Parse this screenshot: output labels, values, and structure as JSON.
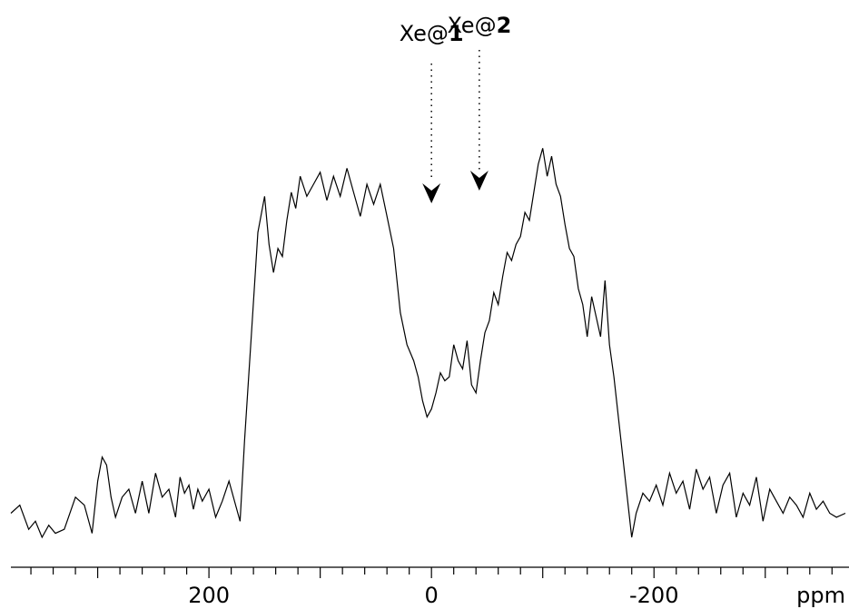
{
  "chart_data": {
    "type": "line",
    "title": "",
    "xlabel": "ppm",
    "ylabel": "",
    "x_reversed": true,
    "xlim": [
      378,
      -372
    ],
    "ylim": [
      0,
      1
    ],
    "x_ticks": [
      {
        "value": 200,
        "label": "200"
      },
      {
        "value": 0,
        "label": "0"
      },
      {
        "value": -200,
        "label": "-200"
      }
    ],
    "series": [
      {
        "name": "",
        "color": "#000000",
        "x": [
          378,
          370,
          362,
          356,
          350,
          344,
          338,
          330,
          320,
          312,
          305,
          300,
          296,
          292,
          288,
          284,
          278,
          272,
          266,
          260,
          254,
          248,
          242,
          236,
          230,
          226,
          222,
          218,
          214,
          210,
          206,
          200,
          194,
          188,
          182,
          176,
          172,
          168,
          162,
          156,
          150,
          146,
          142,
          138,
          134,
          130,
          126,
          122,
          118,
          112,
          106,
          100,
          94,
          88,
          82,
          76,
          70,
          64,
          58,
          52,
          46,
          40,
          34,
          28,
          22,
          16,
          12,
          8,
          4,
          0,
          -4,
          -8,
          -12,
          -16,
          -20,
          -24,
          -28,
          -32,
          -36,
          -40,
          -44,
          -48,
          -52,
          -56,
          -60,
          -64,
          -68,
          -72,
          -76,
          -80,
          -84,
          -88,
          -92,
          -96,
          -100,
          -104,
          -108,
          -112,
          -116,
          -120,
          -124,
          -128,
          -132,
          -136,
          -140,
          -144,
          -148,
          -152,
          -156,
          -160,
          -164,
          -168,
          -172,
          -176,
          -180,
          -184,
          -190,
          -196,
          -202,
          -208,
          -214,
          -220,
          -226,
          -232,
          -238,
          -244,
          -250,
          -256,
          -262,
          -268,
          -274,
          -280,
          -286,
          -292,
          -298,
          -304,
          -310,
          -316,
          -322,
          -328,
          -334,
          -340,
          -346,
          -352,
          -358,
          -364,
          -372
        ],
        "y": [
          0.06,
          0.08,
          0.02,
          0.04,
          0.0,
          0.03,
          0.01,
          0.02,
          0.1,
          0.08,
          0.01,
          0.14,
          0.2,
          0.18,
          0.1,
          0.05,
          0.1,
          0.12,
          0.06,
          0.14,
          0.06,
          0.16,
          0.1,
          0.12,
          0.05,
          0.15,
          0.11,
          0.13,
          0.07,
          0.12,
          0.09,
          0.12,
          0.05,
          0.09,
          0.14,
          0.08,
          0.04,
          0.24,
          0.5,
          0.76,
          0.85,
          0.73,
          0.66,
          0.72,
          0.7,
          0.79,
          0.86,
          0.82,
          0.9,
          0.85,
          0.88,
          0.91,
          0.84,
          0.9,
          0.85,
          0.92,
          0.86,
          0.8,
          0.88,
          0.83,
          0.88,
          0.8,
          0.72,
          0.56,
          0.48,
          0.44,
          0.4,
          0.34,
          0.3,
          0.32,
          0.36,
          0.41,
          0.39,
          0.4,
          0.48,
          0.44,
          0.42,
          0.49,
          0.38,
          0.36,
          0.44,
          0.51,
          0.54,
          0.61,
          0.58,
          0.65,
          0.71,
          0.69,
          0.73,
          0.75,
          0.81,
          0.79,
          0.86,
          0.93,
          0.97,
          0.9,
          0.95,
          0.88,
          0.85,
          0.78,
          0.72,
          0.7,
          0.62,
          0.58,
          0.5,
          0.6,
          0.55,
          0.5,
          0.64,
          0.48,
          0.4,
          0.3,
          0.2,
          0.1,
          0.0,
          0.06,
          0.11,
          0.09,
          0.13,
          0.08,
          0.16,
          0.11,
          0.14,
          0.07,
          0.17,
          0.12,
          0.15,
          0.06,
          0.13,
          0.16,
          0.05,
          0.11,
          0.08,
          0.15,
          0.04,
          0.12,
          0.09,
          0.06,
          0.1,
          0.08,
          0.05,
          0.11,
          0.07,
          0.09,
          0.06,
          0.05,
          0.06
        ]
      }
    ],
    "annotations": [
      {
        "x": 0,
        "text_plain": "Xe@",
        "text_bold": "1"
      },
      {
        "x": -43,
        "text_plain": "Xe@",
        "text_bold": "2"
      }
    ]
  }
}
